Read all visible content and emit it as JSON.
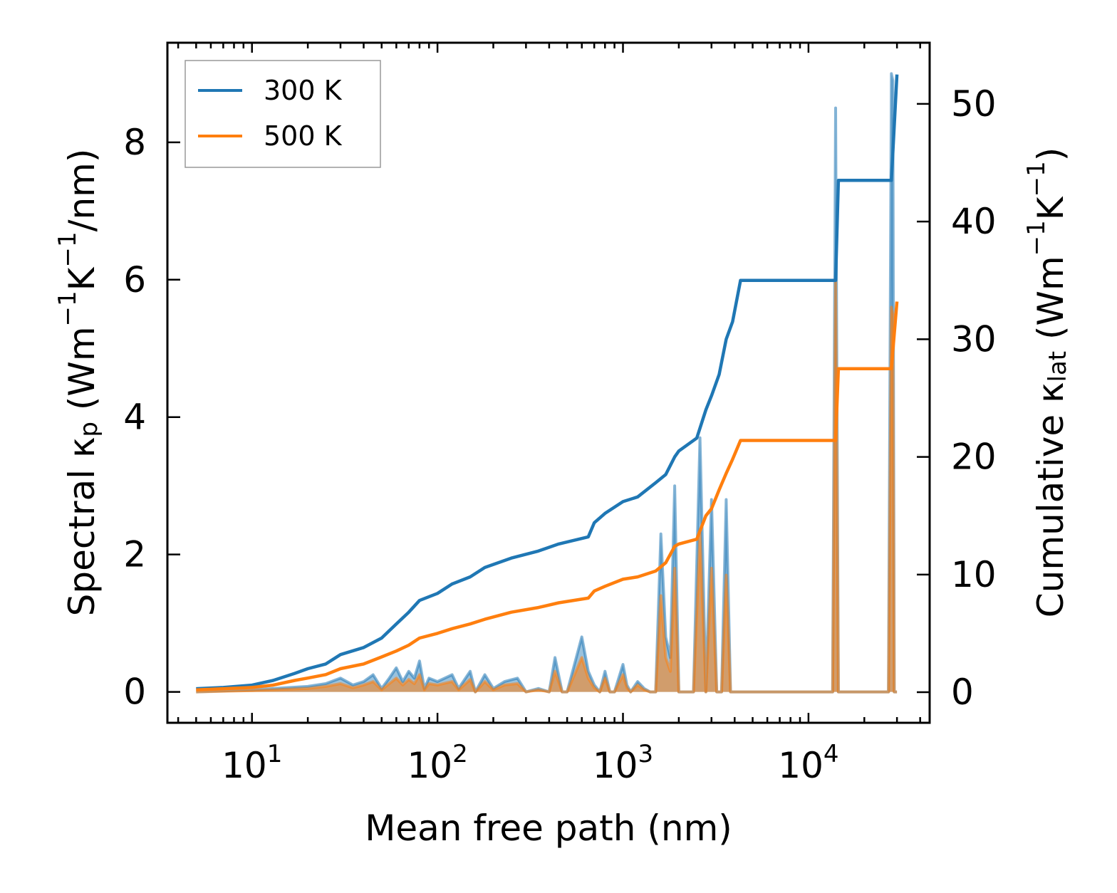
{
  "chart_data": {
    "type": "line",
    "xscale": "log",
    "xlabel": "Mean free path (nm)",
    "ylabel_left": {
      "base": "Spectral κ",
      "sub": "p",
      "units": " (Wm",
      "sup1": "−1",
      "mid": "K",
      "sup2": "−1",
      "tail": "/nm)"
    },
    "ylabel_right": {
      "base": "Cumulative κ",
      "sub": "lat",
      "units": " (Wm",
      "sup1": "−1",
      "mid": "K",
      "sup2": "−1",
      "tail": ")"
    },
    "xlim": [
      3.5,
      45000
    ],
    "ylim_left": [
      -0.45,
      9.45
    ],
    "ylim_right": [
      -2.6,
      55.2
    ],
    "x_ticks": [
      {
        "value": 10,
        "base": "10",
        "exp": "1"
      },
      {
        "value": 100,
        "base": "10",
        "exp": "2"
      },
      {
        "value": 1000,
        "base": "10",
        "exp": "3"
      },
      {
        "value": 10000,
        "base": "10",
        "exp": "4"
      }
    ],
    "y_ticks_left": [
      0,
      2,
      4,
      6,
      8
    ],
    "y_ticks_right": [
      0,
      10,
      20,
      30,
      40,
      50
    ],
    "legend": {
      "position": "top-left",
      "entries": [
        {
          "name": "300 K",
          "color": "#1f77b4"
        },
        {
          "name": "500 K",
          "color": "#ff7f0e"
        }
      ]
    },
    "cumulative_series": [
      {
        "name": "300 K",
        "color": "#1f77b4",
        "x": [
          5,
          7,
          10,
          13,
          17,
          20,
          25,
          30,
          40,
          50,
          60,
          70,
          80,
          100,
          120,
          150,
          180,
          250,
          350,
          450,
          650,
          700,
          800,
          1000,
          1200,
          1500,
          1700,
          1900,
          2000,
          2500,
          2800,
          3000,
          3300,
          3600,
          3900,
          4300,
          14000,
          14500,
          28000,
          30000
        ],
        "y": [
          0.3,
          0.4,
          0.6,
          1.0,
          1.6,
          2.0,
          2.4,
          3.2,
          3.8,
          4.6,
          5.8,
          6.8,
          7.8,
          8.4,
          9.2,
          9.8,
          10.6,
          11.4,
          12.0,
          12.6,
          13.2,
          14.4,
          15.2,
          16.2,
          16.6,
          17.8,
          18.5,
          20.0,
          20.5,
          21.6,
          24.0,
          25.2,
          27.0,
          30.0,
          31.5,
          35.0,
          35.0,
          43.5,
          43.5,
          52.5
        ]
      },
      {
        "name": "500 K",
        "color": "#ff7f0e",
        "x": [
          5,
          7,
          10,
          13,
          17,
          20,
          25,
          30,
          40,
          50,
          60,
          70,
          80,
          100,
          120,
          150,
          180,
          250,
          350,
          450,
          650,
          700,
          800,
          1000,
          1200,
          1500,
          1700,
          1900,
          2000,
          2500,
          2800,
          3000,
          3300,
          3600,
          3900,
          4300,
          14000,
          14500,
          28000,
          30000
        ],
        "y": [
          0.2,
          0.3,
          0.4,
          0.6,
          1.0,
          1.2,
          1.5,
          2.0,
          2.4,
          3.0,
          3.5,
          4.0,
          4.6,
          5.0,
          5.4,
          5.8,
          6.2,
          6.8,
          7.2,
          7.6,
          8.0,
          8.6,
          9.0,
          9.6,
          9.8,
          10.3,
          11.0,
          12.4,
          12.6,
          13.0,
          15.0,
          15.6,
          17.2,
          18.6,
          19.8,
          21.4,
          21.4,
          27.5,
          27.5,
          33.2
        ]
      }
    ],
    "spectral_series": [
      {
        "name": "300 K",
        "color": "#1f77b4",
        "x": [
          5,
          10,
          20,
          25,
          30,
          35,
          40,
          45,
          50,
          55,
          60,
          65,
          70,
          75,
          80,
          85,
          90,
          100,
          120,
          130,
          150,
          160,
          180,
          200,
          230,
          270,
          300,
          350,
          400,
          430,
          470,
          500,
          600,
          650,
          700,
          750,
          800,
          850,
          900,
          1000,
          1050,
          1100,
          1200,
          1300,
          1400,
          1500,
          1600,
          1700,
          1800,
          1900,
          2000,
          2200,
          2400,
          2600,
          2800,
          3000,
          3200,
          3400,
          3600,
          3800,
          4000,
          4200,
          4500,
          13500,
          14000,
          14500,
          15000,
          27000,
          28000,
          28500,
          29000,
          30000
        ],
        "y": [
          0,
          0.03,
          0.08,
          0.12,
          0.2,
          0.1,
          0.15,
          0.25,
          0.05,
          0.2,
          0.35,
          0.15,
          0.3,
          0.2,
          0.45,
          0.05,
          0.2,
          0.15,
          0.25,
          0.05,
          0.3,
          0.0,
          0.25,
          0.05,
          0.15,
          0.2,
          0.0,
          0.05,
          0.0,
          0.5,
          0.0,
          0.0,
          0.8,
          0.3,
          0.1,
          0.0,
          0.3,
          0.0,
          0.0,
          0.4,
          0.1,
          0.0,
          0.15,
          0.05,
          0.0,
          0.0,
          2.3,
          0.8,
          0.5,
          3.0,
          0.0,
          0.0,
          0.0,
          3.7,
          0.0,
          2.8,
          0.0,
          0.0,
          2.8,
          0.0,
          0.0,
          0.0,
          0.0,
          0.0,
          8.5,
          0.0,
          0.0,
          0.0,
          9.0,
          8.9,
          0.0,
          0.0
        ]
      },
      {
        "name": "500 K",
        "color": "#ff7f0e",
        "x": [
          5,
          10,
          20,
          25,
          30,
          35,
          40,
          45,
          50,
          55,
          60,
          65,
          70,
          75,
          80,
          85,
          90,
          100,
          120,
          130,
          150,
          160,
          180,
          200,
          230,
          270,
          300,
          350,
          400,
          430,
          470,
          500,
          600,
          650,
          700,
          750,
          800,
          850,
          900,
          1000,
          1050,
          1100,
          1200,
          1300,
          1400,
          1500,
          1600,
          1700,
          1800,
          1900,
          2000,
          2200,
          2400,
          2600,
          2800,
          3000,
          3200,
          3400,
          3600,
          3800,
          4000,
          4200,
          4500,
          13500,
          14000,
          14500,
          15000,
          27000,
          28000,
          28500,
          29000,
          30000
        ],
        "y": [
          0,
          0.02,
          0.05,
          0.08,
          0.12,
          0.06,
          0.1,
          0.15,
          0.03,
          0.12,
          0.2,
          0.1,
          0.18,
          0.12,
          0.25,
          0.03,
          0.12,
          0.1,
          0.15,
          0.03,
          0.18,
          0.0,
          0.15,
          0.03,
          0.1,
          0.12,
          0.0,
          0.03,
          0.0,
          0.3,
          0.0,
          0.0,
          0.5,
          0.2,
          0.06,
          0.0,
          0.2,
          0.0,
          0.0,
          0.25,
          0.06,
          0.0,
          0.1,
          0.03,
          0.0,
          0.0,
          1.4,
          0.5,
          0.3,
          1.8,
          0.0,
          0.0,
          0.0,
          2.3,
          0.0,
          1.8,
          0.0,
          0.0,
          1.7,
          0.0,
          0.0,
          0.0,
          0.0,
          0.0,
          6.1,
          0.0,
          0.0,
          0.0,
          5.6,
          5.5,
          0.0,
          0.0
        ]
      }
    ]
  }
}
